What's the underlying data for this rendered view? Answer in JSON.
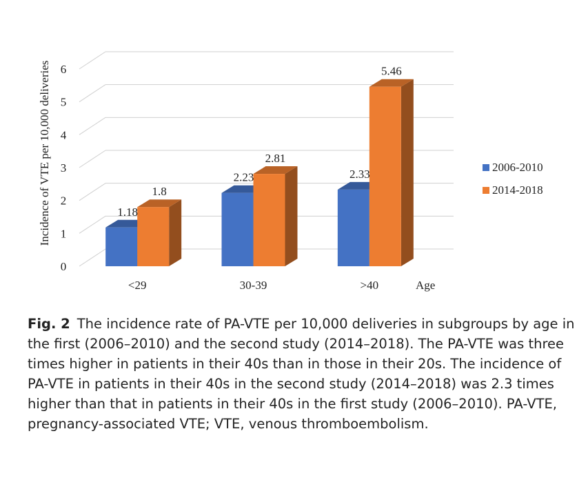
{
  "chart_data": {
    "type": "bar",
    "categories": [
      "<29",
      "30-39",
      ">40"
    ],
    "series": [
      {
        "name": "2006-2010",
        "values": [
          1.18,
          2.23,
          2.33
        ],
        "color": "#4472C4",
        "labels": [
          "1.18",
          "2.23",
          "2.33"
        ]
      },
      {
        "name": "2014-2018",
        "values": [
          1.8,
          2.81,
          5.46
        ],
        "color": "#ED7D31",
        "labels": [
          "1.8",
          "2.81",
          "5.46"
        ]
      }
    ],
    "ylabel": "Incidence of VTE per 10,000 deliveries",
    "xlabel": "Age",
    "ylim": [
      0,
      6
    ],
    "yticks": [
      "0",
      "1",
      "2",
      "3",
      "4",
      "5",
      "6"
    ],
    "grid": true,
    "legend": "right",
    "style": "3d-bars"
  },
  "caption": {
    "label": "Fig. 2",
    "text": "The incidence rate of PA-VTE per 10,000 deliveries in subgroups by age in the first (2006–2010) and the second study (2014–2018). The PA-VTE was three times higher in patients in their 40s than in those in their 20s. The incidence of PA-VTE in patients in their 40s in the second study (2014–2018) was 2.3 times higher than that in patients in their 40s in the first study (2006–2010). PA-VTE, pregnancy-associated VTE; VTE, venous thromboembolism."
  }
}
